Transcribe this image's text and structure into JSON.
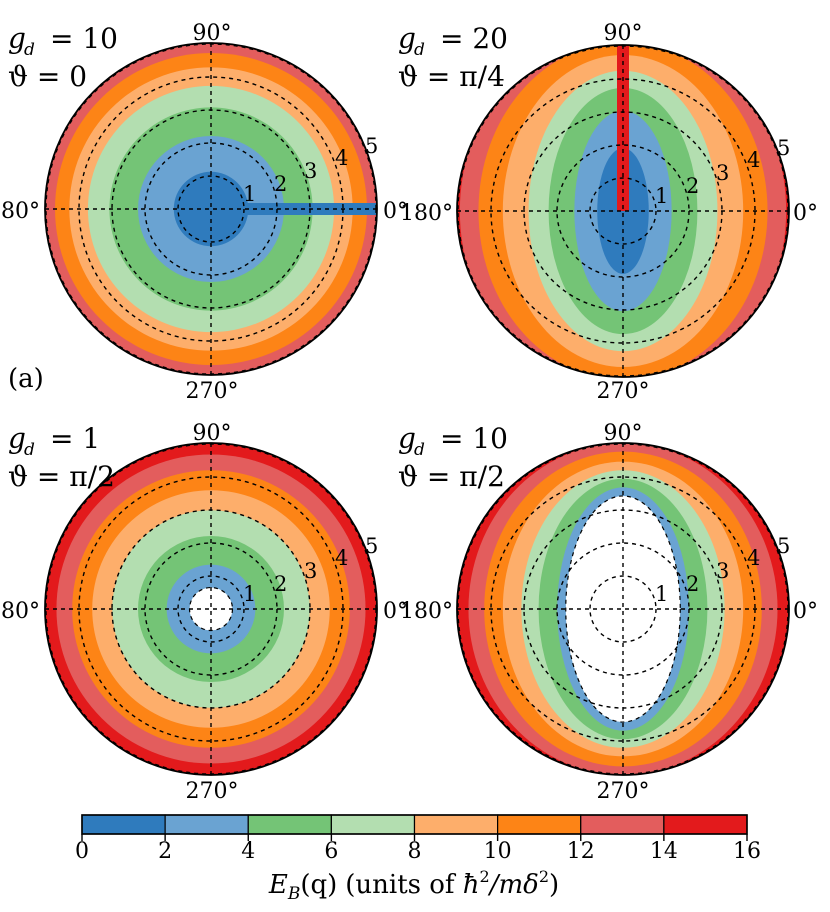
{
  "chart_data": {
    "type": "polar-contour",
    "colorbar": {
      "ticks": [
        "0",
        "2",
        "4",
        "6",
        "8",
        "10",
        "12",
        "14",
        "16"
      ],
      "levels": [
        0,
        2,
        4,
        6,
        8,
        10,
        12,
        14,
        16
      ],
      "colors": [
        "#2f7bbd",
        "#6aa3d2",
        "#74c476",
        "#b3deb0",
        "#fdae6b",
        "#fd8416",
        "#e35d5d",
        "#e31a1c"
      ],
      "label_main": "E",
      "label_sub": "B",
      "label_arg": "(q)",
      "label_units_prefix": "(units of ",
      "label_hbar": "ħ",
      "label_sq": "2",
      "label_slash": "/m",
      "label_delta": "δ",
      "label_close": ")"
    },
    "panel_tag": "(a)",
    "angle_labels": [
      "0°",
      "90°",
      "180°",
      "270°"
    ],
    "radial_labels": [
      "1",
      "2",
      "3",
      "4",
      "5"
    ],
    "panels": [
      {
        "gd_sym": "g",
        "gd_sub": "d",
        "gd_text": "= 10",
        "theta_text": "ϑ = 0",
        "rmax": 5.8,
        "contours": [
          {
            "level": 2,
            "a": 1.3,
            "b": 1.3
          },
          {
            "level": 4,
            "a": 2.55,
            "b": 2.55
          },
          {
            "level": 6,
            "a": 3.55,
            "b": 3.55
          },
          {
            "level": 8,
            "a": 4.3,
            "b": 4.3
          },
          {
            "level": 10,
            "a": 4.95,
            "b": 4.95
          },
          {
            "level": 12,
            "a": 5.45,
            "b": 5.45
          }
        ],
        "spike": {
          "angle_deg": 0,
          "value": 1
        }
      },
      {
        "gd_sym": "g",
        "gd_sub": "d",
        "gd_text": "= 20",
        "theta_text": "ϑ = π/4",
        "rmax": 5.8,
        "contours": [
          {
            "level": 2,
            "a": 0.9,
            "b": 2.2
          },
          {
            "level": 4,
            "a": 1.7,
            "b": 3.5
          },
          {
            "level": 6,
            "a": 2.6,
            "b": 4.3
          },
          {
            "level": 8,
            "a": 3.3,
            "b": 4.9
          },
          {
            "level": 10,
            "a": 4.2,
            "b": 5.45
          },
          {
            "level": 12,
            "a": 5.05,
            "b": 5.9
          },
          {
            "level": 14,
            "a": 5.7,
            "b": 6.5
          }
        ],
        "spike": {
          "angle_deg": 90,
          "value": 14
        }
      },
      {
        "gd_sym": "g",
        "gd_sub": "d",
        "gd_text": "= 1",
        "theta_text": "ϑ = π/2",
        "rmax": 5.8,
        "contours": [
          {
            "level": 2,
            "a": 0.75,
            "b": 0.75
          },
          {
            "level": 4,
            "a": 1.55,
            "b": 1.55
          },
          {
            "level": 6,
            "a": 2.55,
            "b": 2.55
          },
          {
            "level": 8,
            "a": 3.45,
            "b": 3.45
          },
          {
            "level": 10,
            "a": 4.15,
            "b": 4.15
          },
          {
            "level": 12,
            "a": 4.85,
            "b": 4.85
          },
          {
            "level": 14,
            "a": 5.4,
            "b": 5.4
          }
        ],
        "hole": {
          "a": 0.75,
          "b": 0.75
        }
      },
      {
        "gd_sym": "g",
        "gd_sub": "d",
        "gd_text": "= 10",
        "theta_text": "ϑ = π/2",
        "rmax": 5.8,
        "contours": [
          {
            "level": 2,
            "a": 2.0,
            "b": 3.95
          },
          {
            "level": 4,
            "a": 2.3,
            "b": 4.25
          },
          {
            "level": 6,
            "a": 2.95,
            "b": 4.55
          },
          {
            "level": 8,
            "a": 3.55,
            "b": 4.85
          },
          {
            "level": 10,
            "a": 4.2,
            "b": 5.15
          },
          {
            "level": 12,
            "a": 4.85,
            "b": 5.5
          },
          {
            "level": 14,
            "a": 5.4,
            "b": 5.8
          }
        ],
        "hole": {
          "a": 2.0,
          "b": 3.95
        }
      }
    ]
  }
}
